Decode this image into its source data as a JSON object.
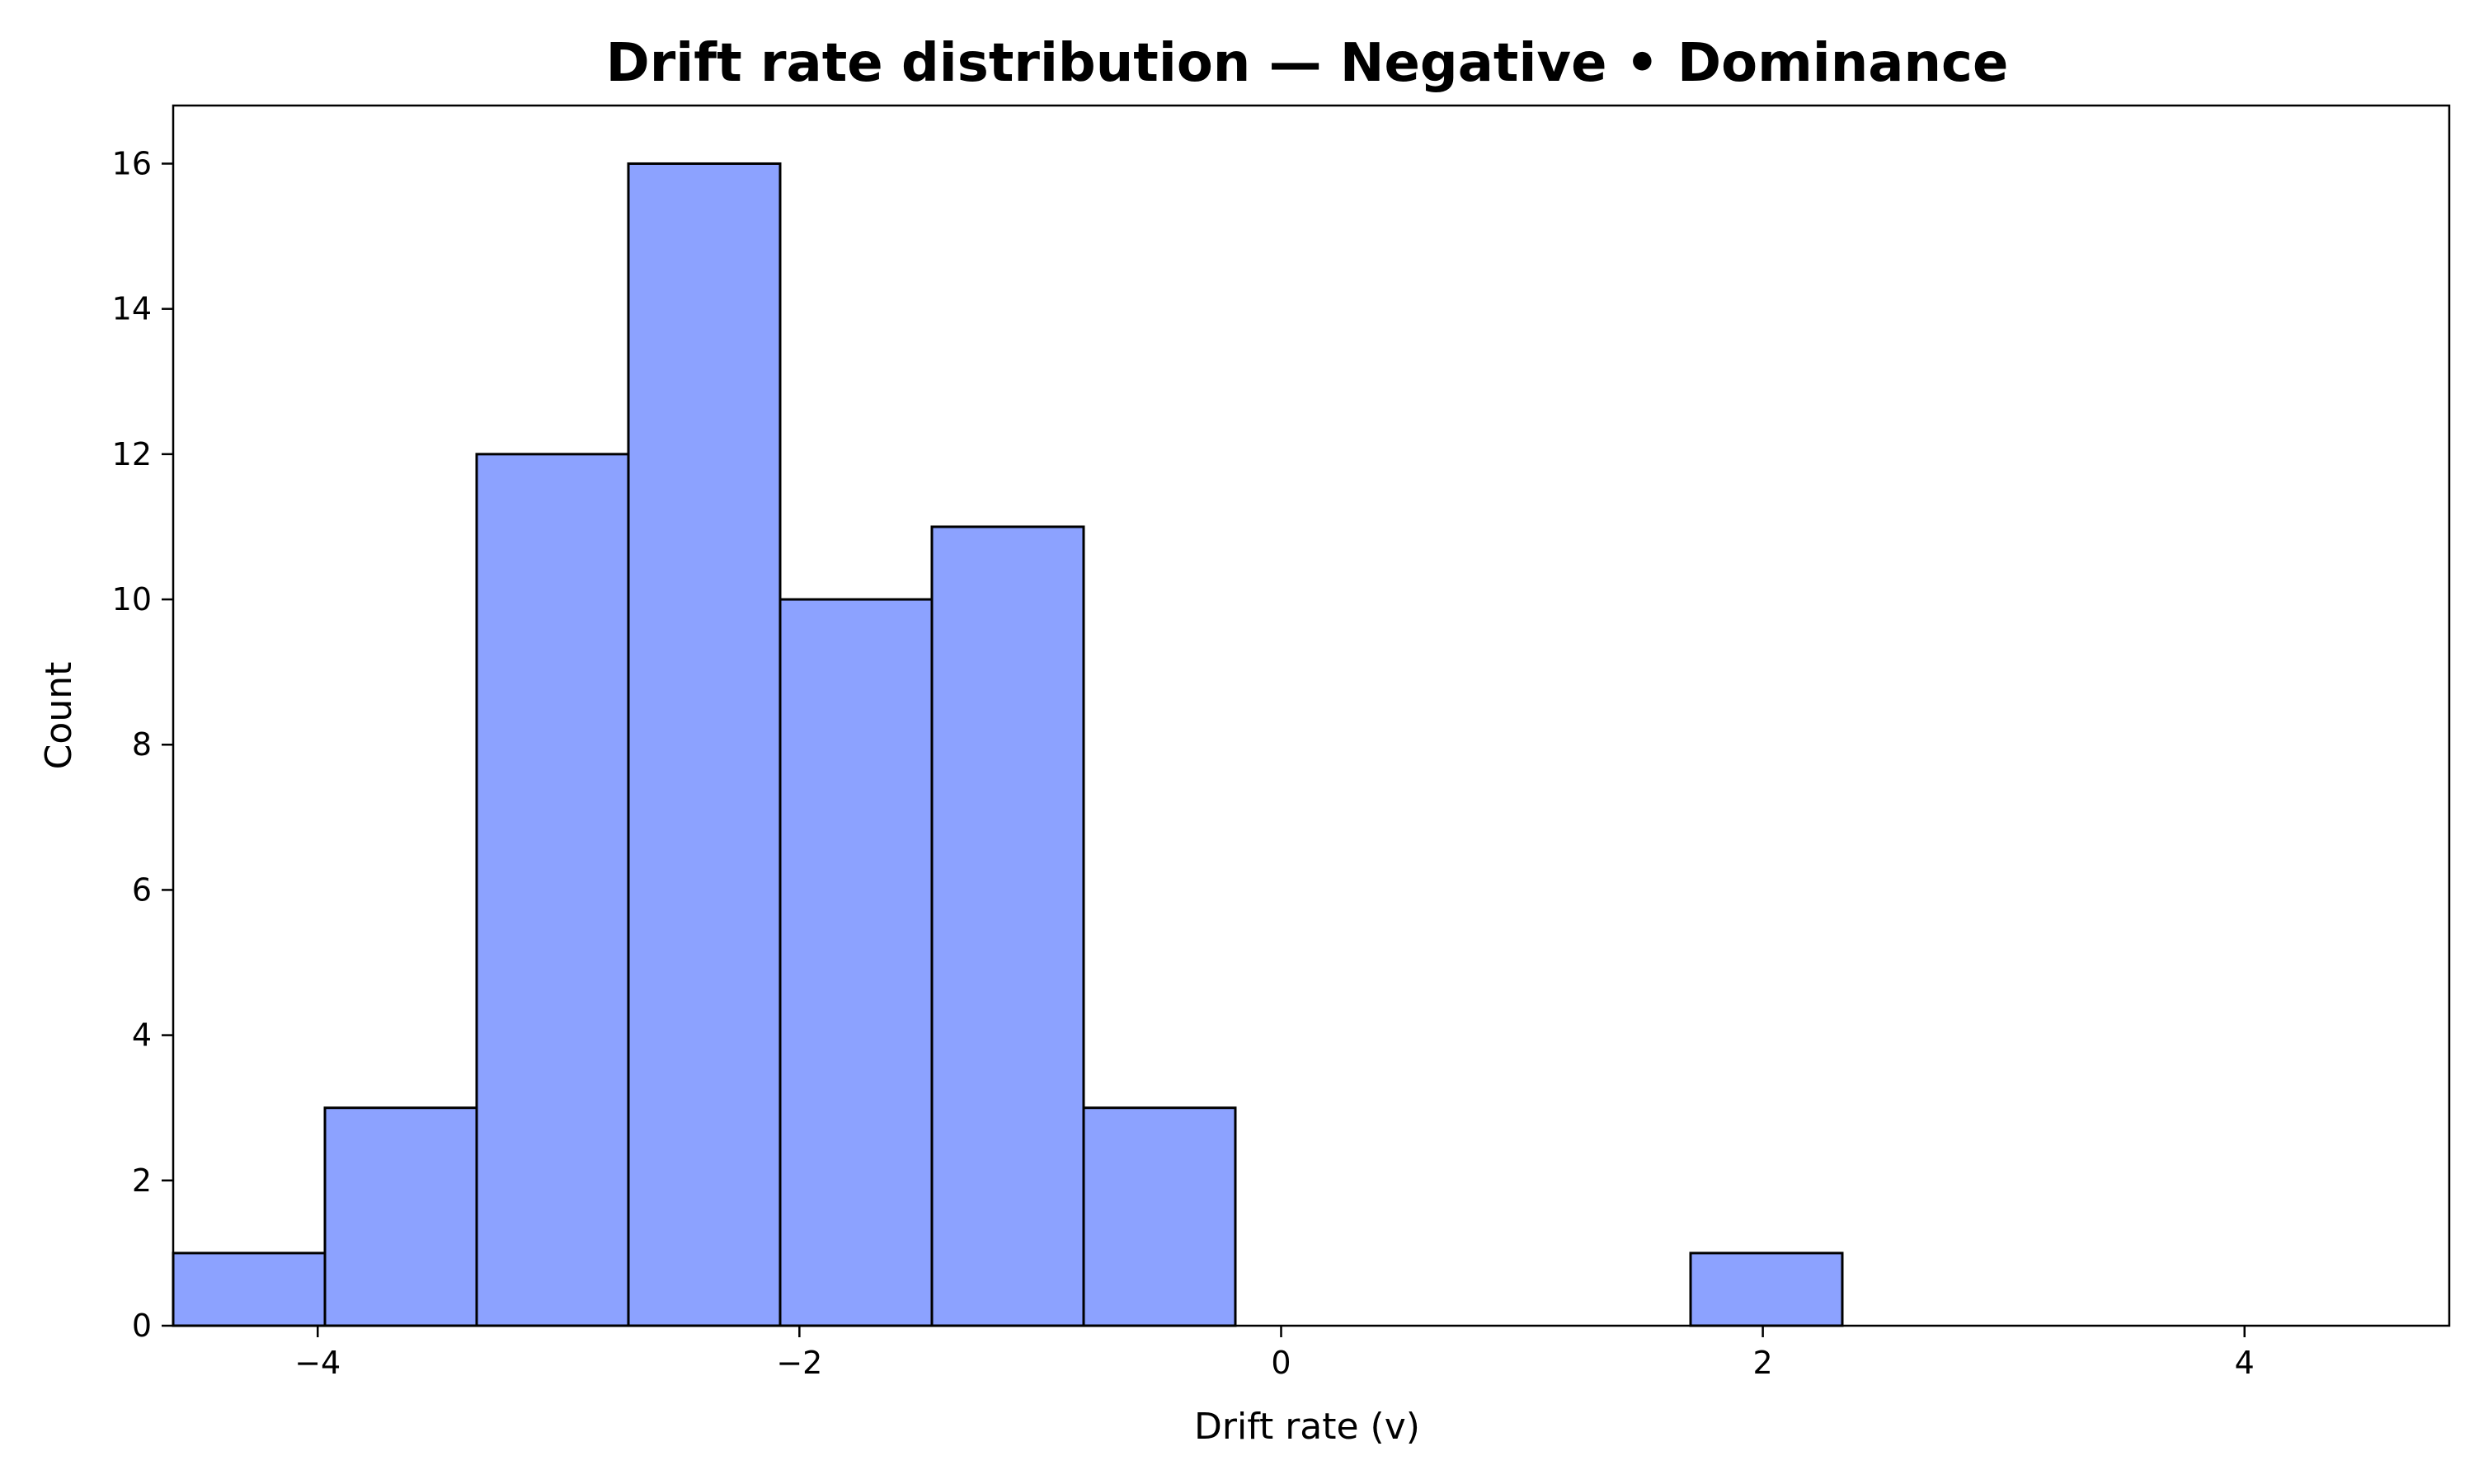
{
  "chart_data": {
    "type": "bar",
    "subtype": "histogram",
    "title": "Drift rate distribution — Negative • Dominance",
    "xlabel": "Drift rate (v)",
    "ylabel": "Count",
    "xlim": [
      -4.6,
      4.85
    ],
    "ylim": [
      0,
      16.8
    ],
    "xticks": [
      -4,
      -2,
      0,
      2,
      4
    ],
    "xtick_labels": [
      "−4",
      "−2",
      "0",
      "2",
      "4"
    ],
    "yticks": [
      0,
      2,
      4,
      6,
      8,
      10,
      12,
      14,
      16
    ],
    "ytick_labels": [
      "0",
      "2",
      "4",
      "6",
      "8",
      "10",
      "12",
      "14",
      "16"
    ],
    "grid": false,
    "bar_color": "#8ca2ff",
    "edge_color": "#000000",
    "bins": [
      {
        "x0": -4.6,
        "x1": -3.97,
        "count": 1
      },
      {
        "x0": -3.97,
        "x1": -3.34,
        "count": 3
      },
      {
        "x0": -3.34,
        "x1": -2.71,
        "count": 12
      },
      {
        "x0": -2.71,
        "x1": -2.08,
        "count": 16
      },
      {
        "x0": -2.08,
        "x1": -1.45,
        "count": 10
      },
      {
        "x0": -1.45,
        "x1": -0.82,
        "count": 11
      },
      {
        "x0": -0.82,
        "x1": -0.19,
        "count": 3
      },
      {
        "x0": -0.19,
        "x1": 0.44,
        "count": 0
      },
      {
        "x0": 0.44,
        "x1": 1.07,
        "count": 0
      },
      {
        "x0": 1.07,
        "x1": 1.7,
        "count": 0
      },
      {
        "x0": 1.7,
        "x1": 2.33,
        "count": 1
      },
      {
        "x0": 2.33,
        "x1": 2.96,
        "count": 0
      },
      {
        "x0": 2.96,
        "x1": 3.59,
        "count": 0
      },
      {
        "x0": 3.59,
        "x1": 4.22,
        "count": 0
      },
      {
        "x0": 4.22,
        "x1": 4.85,
        "count": 0
      }
    ]
  }
}
